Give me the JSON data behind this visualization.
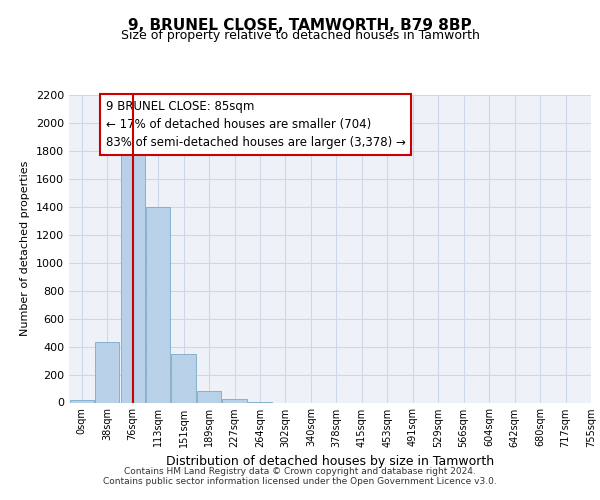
{
  "title": "9, BRUNEL CLOSE, TAMWORTH, B79 8BP",
  "subtitle": "Size of property relative to detached houses in Tamworth",
  "xlabel": "Distribution of detached houses by size in Tamworth",
  "ylabel": "Number of detached properties",
  "bin_labels": [
    "0sqm",
    "38sqm",
    "76sqm",
    "113sqm",
    "151sqm",
    "189sqm",
    "227sqm",
    "264sqm",
    "302sqm",
    "340sqm",
    "378sqm",
    "415sqm",
    "453sqm",
    "491sqm",
    "529sqm",
    "566sqm",
    "604sqm",
    "642sqm",
    "680sqm",
    "717sqm",
    "755sqm"
  ],
  "bar_heights": [
    20,
    430,
    1810,
    1400,
    350,
    80,
    25,
    5,
    0,
    0,
    0,
    0,
    0,
    0,
    0,
    0,
    0,
    0,
    0,
    0
  ],
  "bar_color": "#b8d0e8",
  "bar_edge_color": "#7aaac8",
  "property_bin_index": 2,
  "vline_color": "#cc0000",
  "annotation_line1": "9 BRUNEL CLOSE: 85sqm",
  "annotation_line2": "← 17% of detached houses are smaller (704)",
  "annotation_line3": "83% of semi-detached houses are larger (3,378) →",
  "annotation_box_color": "#ffffff",
  "annotation_box_edge": "#cc0000",
  "ylim": [
    0,
    2200
  ],
  "yticks": [
    0,
    200,
    400,
    600,
    800,
    1000,
    1200,
    1400,
    1600,
    1800,
    2000,
    2200
  ],
  "footer_line1": "Contains HM Land Registry data © Crown copyright and database right 2024.",
  "footer_line2": "Contains public sector information licensed under the Open Government Licence v3.0.",
  "bg_color": "#eef2f8",
  "grid_color": "#ccd8e8"
}
